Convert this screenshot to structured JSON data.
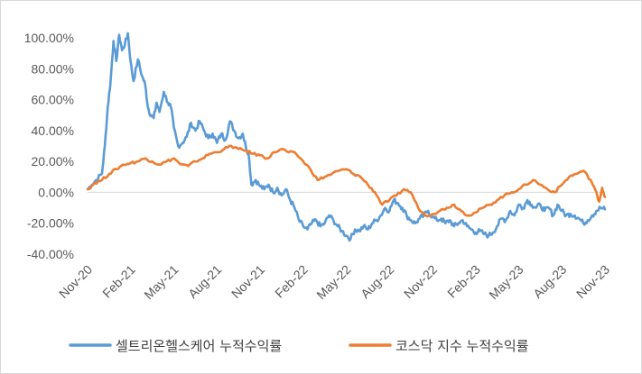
{
  "chart_data": {
    "type": "line",
    "title": "",
    "xlabel": "",
    "ylabel": "",
    "ylim": [
      -0.4,
      1.0
    ],
    "yticks": [
      {
        "value": 1.0,
        "label": "100.00%"
      },
      {
        "value": 0.8,
        "label": "80.00%"
      },
      {
        "value": 0.6,
        "label": "60.00%"
      },
      {
        "value": 0.4,
        "label": "40.00%"
      },
      {
        "value": 0.2,
        "label": "20.00%"
      },
      {
        "value": 0.0,
        "label": "0.00%"
      },
      {
        "value": -0.2,
        "label": "-20.00%"
      },
      {
        "value": -0.4,
        "label": "-40.00%"
      }
    ],
    "xlim": [
      0,
      36
    ],
    "xticks": [
      {
        "value": 0,
        "label": "Nov-20"
      },
      {
        "value": 3,
        "label": "Feb-21"
      },
      {
        "value": 6,
        "label": "May-21"
      },
      {
        "value": 9,
        "label": "Aug-21"
      },
      {
        "value": 12,
        "label": "Nov-21"
      },
      {
        "value": 15,
        "label": "Feb-22"
      },
      {
        "value": 18,
        "label": "May-22"
      },
      {
        "value": 21,
        "label": "Aug-22"
      },
      {
        "value": 24,
        "label": "Nov-22"
      },
      {
        "value": 27,
        "label": "Feb-23"
      },
      {
        "value": 30,
        "label": "May-23"
      },
      {
        "value": 33,
        "label": "Aug-23"
      },
      {
        "value": 36,
        "label": "Nov-23"
      }
    ],
    "legend_position": "bottom",
    "series": [
      {
        "name": "셀트리온헬스케어 누적수익률",
        "color": "#5b9bd5",
        "points": [
          [
            0,
            0.02
          ],
          [
            0.3,
            0.05
          ],
          [
            0.6,
            0.08
          ],
          [
            1.0,
            0.12
          ],
          [
            1.2,
            0.3
          ],
          [
            1.4,
            0.55
          ],
          [
            1.6,
            0.72
          ],
          [
            1.8,
            0.98
          ],
          [
            2.0,
            0.85
          ],
          [
            2.2,
            1.02
          ],
          [
            2.4,
            0.92
          ],
          [
            2.6,
            0.96
          ],
          [
            2.8,
            1.03
          ],
          [
            3.0,
            0.84
          ],
          [
            3.2,
            0.72
          ],
          [
            3.5,
            0.86
          ],
          [
            3.8,
            0.75
          ],
          [
            4.0,
            0.7
          ],
          [
            4.2,
            0.55
          ],
          [
            4.4,
            0.5
          ],
          [
            4.6,
            0.48
          ],
          [
            4.8,
            0.58
          ],
          [
            5.0,
            0.52
          ],
          [
            5.3,
            0.65
          ],
          [
            5.6,
            0.58
          ],
          [
            5.8,
            0.55
          ],
          [
            6.0,
            0.42
          ],
          [
            6.3,
            0.3
          ],
          [
            6.6,
            0.32
          ],
          [
            6.9,
            0.36
          ],
          [
            7.2,
            0.45
          ],
          [
            7.5,
            0.4
          ],
          [
            7.8,
            0.46
          ],
          [
            8.1,
            0.4
          ],
          [
            8.4,
            0.35
          ],
          [
            8.7,
            0.38
          ],
          [
            9.0,
            0.32
          ],
          [
            9.3,
            0.38
          ],
          [
            9.6,
            0.34
          ],
          [
            9.9,
            0.46
          ],
          [
            10.2,
            0.4
          ],
          [
            10.5,
            0.35
          ],
          [
            10.8,
            0.38
          ],
          [
            11.0,
            0.3
          ],
          [
            11.2,
            0.25
          ],
          [
            11.4,
            0.05
          ],
          [
            11.7,
            0.08
          ],
          [
            12.0,
            0.04
          ],
          [
            12.3,
            0.02
          ],
          [
            12.6,
            0.05
          ],
          [
            12.9,
            0.0
          ],
          [
            13.2,
            0.03
          ],
          [
            13.5,
            -0.02
          ],
          [
            13.8,
            0.02
          ],
          [
            14.1,
            -0.05
          ],
          [
            14.4,
            -0.1
          ],
          [
            14.7,
            -0.18
          ],
          [
            15.0,
            -0.22
          ],
          [
            15.3,
            -0.24
          ],
          [
            15.6,
            -0.2
          ],
          [
            15.9,
            -0.18
          ],
          [
            16.2,
            -0.22
          ],
          [
            16.5,
            -0.2
          ],
          [
            16.8,
            -0.15
          ],
          [
            17.1,
            -0.18
          ],
          [
            17.4,
            -0.22
          ],
          [
            17.7,
            -0.25
          ],
          [
            18.0,
            -0.28
          ],
          [
            18.3,
            -0.3
          ],
          [
            18.6,
            -0.24
          ],
          [
            18.9,
            -0.25
          ],
          [
            19.2,
            -0.22
          ],
          [
            19.5,
            -0.24
          ],
          [
            19.8,
            -0.2
          ],
          [
            20.1,
            -0.18
          ],
          [
            20.4,
            -0.15
          ],
          [
            20.7,
            -0.1
          ],
          [
            21.0,
            -0.12
          ],
          [
            21.3,
            -0.05
          ],
          [
            21.6,
            -0.07
          ],
          [
            21.9,
            -0.1
          ],
          [
            22.2,
            -0.15
          ],
          [
            22.5,
            -0.18
          ],
          [
            22.8,
            -0.2
          ],
          [
            23.1,
            -0.17
          ],
          [
            23.4,
            -0.15
          ],
          [
            23.7,
            -0.12
          ],
          [
            24.0,
            -0.16
          ],
          [
            24.3,
            -0.18
          ],
          [
            24.6,
            -0.17
          ],
          [
            24.9,
            -0.2
          ],
          [
            25.2,
            -0.18
          ],
          [
            25.5,
            -0.22
          ],
          [
            25.8,
            -0.2
          ],
          [
            26.1,
            -0.18
          ],
          [
            26.4,
            -0.22
          ],
          [
            26.7,
            -0.24
          ],
          [
            27.0,
            -0.26
          ],
          [
            27.3,
            -0.25
          ],
          [
            27.6,
            -0.27
          ],
          [
            27.9,
            -0.28
          ],
          [
            28.2,
            -0.26
          ],
          [
            28.5,
            -0.22
          ],
          [
            28.8,
            -0.17
          ],
          [
            29.1,
            -0.18
          ],
          [
            29.4,
            -0.12
          ],
          [
            29.7,
            -0.15
          ],
          [
            30.0,
            -0.08
          ],
          [
            30.3,
            -0.1
          ],
          [
            30.6,
            -0.05
          ],
          [
            30.9,
            -0.08
          ],
          [
            31.2,
            -0.1
          ],
          [
            31.5,
            -0.08
          ],
          [
            31.8,
            -0.12
          ],
          [
            32.1,
            -0.1
          ],
          [
            32.4,
            -0.15
          ],
          [
            32.7,
            -0.08
          ],
          [
            33.0,
            -0.12
          ],
          [
            33.3,
            -0.15
          ],
          [
            33.6,
            -0.14
          ],
          [
            33.9,
            -0.15
          ],
          [
            34.2,
            -0.17
          ],
          [
            34.5,
            -0.2
          ],
          [
            34.8,
            -0.18
          ],
          [
            35.1,
            -0.15
          ],
          [
            35.4,
            -0.12
          ],
          [
            35.7,
            -0.1
          ],
          [
            36.0,
            -0.11
          ]
        ]
      },
      {
        "name": "코스닥 지수 누적수익률",
        "color": "#ed7d31",
        "points": [
          [
            0,
            0.02
          ],
          [
            0.5,
            0.06
          ],
          [
            1.0,
            0.08
          ],
          [
            1.5,
            0.12
          ],
          [
            2.0,
            0.15
          ],
          [
            2.5,
            0.18
          ],
          [
            3.0,
            0.19
          ],
          [
            3.5,
            0.2
          ],
          [
            4.0,
            0.22
          ],
          [
            4.5,
            0.2
          ],
          [
            5.0,
            0.18
          ],
          [
            5.5,
            0.2
          ],
          [
            6.0,
            0.22
          ],
          [
            6.5,
            0.18
          ],
          [
            7.0,
            0.17
          ],
          [
            7.5,
            0.2
          ],
          [
            8.0,
            0.22
          ],
          [
            8.5,
            0.25
          ],
          [
            9.0,
            0.26
          ],
          [
            9.5,
            0.28
          ],
          [
            10.0,
            0.3
          ],
          [
            10.5,
            0.28
          ],
          [
            11.0,
            0.27
          ],
          [
            11.5,
            0.25
          ],
          [
            12.0,
            0.24
          ],
          [
            12.5,
            0.22
          ],
          [
            13.0,
            0.26
          ],
          [
            13.5,
            0.28
          ],
          [
            14.0,
            0.26
          ],
          [
            14.5,
            0.25
          ],
          [
            15.0,
            0.2
          ],
          [
            15.5,
            0.15
          ],
          [
            16.0,
            0.08
          ],
          [
            16.5,
            0.1
          ],
          [
            17.0,
            0.12
          ],
          [
            17.5,
            0.14
          ],
          [
            18.0,
            0.15
          ],
          [
            18.5,
            0.12
          ],
          [
            19.0,
            0.1
          ],
          [
            19.5,
            0.05
          ],
          [
            20.0,
            0.0
          ],
          [
            20.5,
            -0.08
          ],
          [
            21.0,
            -0.05
          ],
          [
            21.5,
            -0.02
          ],
          [
            22.0,
            0.02
          ],
          [
            22.5,
            0.0
          ],
          [
            23.0,
            -0.1
          ],
          [
            23.5,
            -0.15
          ],
          [
            24.0,
            -0.14
          ],
          [
            24.5,
            -0.12
          ],
          [
            25.0,
            -0.1
          ],
          [
            25.5,
            -0.08
          ],
          [
            26.0,
            -0.12
          ],
          [
            26.5,
            -0.15
          ],
          [
            27.0,
            -0.13
          ],
          [
            27.5,
            -0.1
          ],
          [
            28.0,
            -0.08
          ],
          [
            28.5,
            -0.05
          ],
          [
            29.0,
            -0.02
          ],
          [
            29.5,
            0.0
          ],
          [
            30.0,
            0.02
          ],
          [
            30.5,
            0.05
          ],
          [
            31.0,
            0.08
          ],
          [
            31.5,
            0.05
          ],
          [
            32.0,
            0.02
          ],
          [
            32.5,
            0.0
          ],
          [
            33.0,
            0.05
          ],
          [
            33.5,
            0.1
          ],
          [
            34.0,
            0.12
          ],
          [
            34.5,
            0.14
          ],
          [
            35.0,
            0.08
          ],
          [
            35.3,
            0.02
          ],
          [
            35.6,
            -0.06
          ],
          [
            35.8,
            0.03
          ],
          [
            36.0,
            -0.03
          ]
        ]
      }
    ]
  }
}
